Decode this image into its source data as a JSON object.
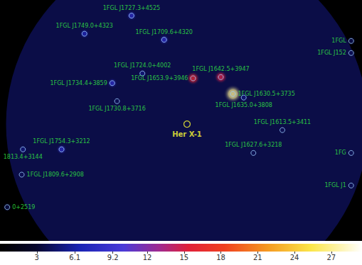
{
  "chart_data": {
    "type": "scatter",
    "xlim": [
      -15.5,
      14.5
    ],
    "ylim": [
      -9.7,
      10.3
    ],
    "tick_labels": false,
    "grid": false,
    "color": "#33ee44",
    "roi": {
      "x": 0,
      "y": 0,
      "radius": 15,
      "counts": 3.6
    },
    "target": {
      "name": "Her X-1",
      "x": 0,
      "y": 0,
      "color": "#ffff33"
    },
    "sources": [
      {
        "name": "1FGL J1727.3+4525",
        "x": -4.6,
        "y": 9.0,
        "counts": 8
      },
      {
        "name": "1FGL J1749.0+4323",
        "x": -8.5,
        "y": 7.5,
        "counts": 7
      },
      {
        "name": "1FGL J1709.6+4320",
        "x": -1.9,
        "y": 7.0,
        "counts": 8
      },
      {
        "name": "1FGL J1724.0+4002",
        "x": -3.7,
        "y": 4.2,
        "counts": 5
      },
      {
        "name": "1FGL J1734.4+3859",
        "x": -6.2,
        "y": 3.4,
        "counts": 8
      },
      {
        "name": "1FGL J1730.8+3716",
        "x": -5.8,
        "y": 1.9,
        "counts": 4
      },
      {
        "name": "1FGL J1653.9+3946",
        "x": 0.5,
        "y": 3.8,
        "counts": 16
      },
      {
        "name": "1FGL J1642.5+3947",
        "x": 2.8,
        "y": 3.9,
        "counts": 15
      },
      {
        "name": "1FGL J1635.0+3808",
        "x": 4.7,
        "y": 2.2,
        "counts": 5
      },
      {
        "name": "1FGL J1630.5+3735",
        "x": 3.8,
        "y": 2.5,
        "counts": 27
      },
      {
        "name": "1FGL J1613.5+3411",
        "x": 7.9,
        "y": -0.5,
        "counts": 4
      },
      {
        "name": "1FGL J1627.6+3218",
        "x": 5.5,
        "y": -2.4,
        "counts": 4
      },
      {
        "name": "1FGL J1754.3+3212",
        "x": -10.4,
        "y": -2.1,
        "counts": 8
      },
      {
        "name": "1813.4+3144",
        "x": -13.6,
        "y": -2.1,
        "counts": 5
      },
      {
        "name": "1FGL J1809.6+2908",
        "x": -13.7,
        "y": -4.2,
        "counts": 4
      },
      {
        "name": "0+2519",
        "x": -14.9,
        "y": -6.9,
        "counts": 3.8
      },
      {
        "name": "1FGL",
        "x": 13.6,
        "y": 6.9,
        "counts": 4
      },
      {
        "name": "1FGL J152",
        "x": 13.6,
        "y": 5.9,
        "counts": 4
      },
      {
        "name": "1FG",
        "x": 13.6,
        "y": -2.4,
        "counts": 4
      },
      {
        "name": "1FGL J1",
        "x": 13.6,
        "y": -5.1,
        "counts": 4
      }
    ],
    "colorbar": {
      "range": [
        0,
        29.5
      ],
      "ticks": [
        3,
        6.1,
        9.2,
        12,
        15,
        18,
        21,
        24,
        27
      ]
    }
  }
}
